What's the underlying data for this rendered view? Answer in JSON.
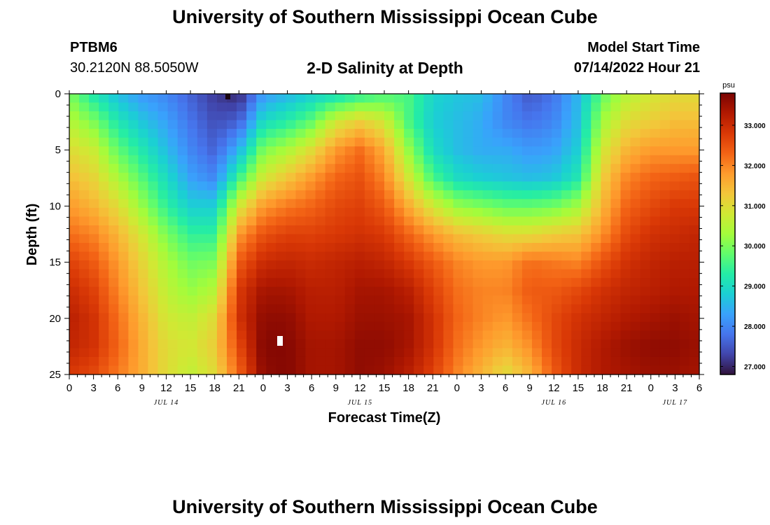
{
  "header": {
    "title": "University of Southern Mississippi Ocean Cube",
    "station_id": "PTBM6",
    "location": "30.2120N  88.5050W",
    "plot_title": "2-D Salinity at Depth",
    "model_start_label": "Model Start Time",
    "model_start_value": "07/14/2022 Hour 21"
  },
  "footer": {
    "title": "University of Southern Mississippi Ocean Cube"
  },
  "chart_data": {
    "type": "heatmap",
    "title": "2-D Salinity at Depth",
    "xlabel": "Forecast Time(Z)",
    "ylabel": "Depth (ft)",
    "ylim": [
      0,
      25
    ],
    "y_ticks": [
      "0",
      "5",
      "10",
      "15",
      "20",
      "25"
    ],
    "x_range_hours": [
      0,
      78
    ],
    "x_tick_labels": [
      "0",
      "3",
      "6",
      "9",
      "12",
      "15",
      "18",
      "21",
      "0",
      "3",
      "6",
      "9",
      "12",
      "15",
      "18",
      "21",
      "0",
      "3",
      "6",
      "9",
      "12",
      "15",
      "18",
      "21",
      "0",
      "3",
      "6"
    ],
    "date_labels": [
      {
        "text": "JUL 14",
        "hour": 12
      },
      {
        "text": "JUL 15",
        "hour": 36
      },
      {
        "text": "JUL 16",
        "hour": 60
      },
      {
        "text": "JUL 17",
        "hour": 75
      }
    ],
    "colorbar": {
      "unit": "psu",
      "min": 26.8,
      "max": 33.8,
      "ticks": [
        "27.000",
        "28.000",
        "29.000",
        "30.000",
        "31.000",
        "32.000",
        "33.000"
      ],
      "colors": [
        "#30123b",
        "#4145ab",
        "#4675ed",
        "#39a2fc",
        "#1bcfd4",
        "#24eca6",
        "#61fc6c",
        "#a4fc3b",
        "#d1e834",
        "#f3c63a",
        "#fe9b2d",
        "#f36315",
        "#d93806",
        "#b11901",
        "#7a0402"
      ]
    },
    "depth_rows_ft": [
      0,
      2.5,
      5,
      7.5,
      10,
      12.5,
      15,
      17.5,
      20,
      22.5,
      25
    ],
    "time_columns_hours": [
      0,
      3,
      6,
      9,
      12,
      15,
      18,
      21,
      24,
      27,
      30,
      33,
      36,
      39,
      42,
      45,
      48,
      51,
      54,
      57,
      60,
      63,
      66,
      69,
      72,
      75,
      78
    ],
    "salinity_psu": [
      [
        30.0,
        29.2,
        28.6,
        28.2,
        28.0,
        27.6,
        27.2,
        27.0,
        28.2,
        28.5,
        28.8,
        29.0,
        29.3,
        29.6,
        29.6,
        28.9,
        28.7,
        28.6,
        28.0,
        27.5,
        27.8,
        28.5,
        29.8,
        30.5,
        30.8,
        31.0,
        31.0
      ],
      [
        30.5,
        30.0,
        29.2,
        28.7,
        28.3,
        27.8,
        27.4,
        27.6,
        29.0,
        29.3,
        29.8,
        30.8,
        31.2,
        30.8,
        29.6,
        28.8,
        28.6,
        28.4,
        28.0,
        27.8,
        28.0,
        28.6,
        30.3,
        31.0,
        31.2,
        31.4,
        31.4
      ],
      [
        31.0,
        30.7,
        29.8,
        29.2,
        28.6,
        28.0,
        27.6,
        28.5,
        30.0,
        30.4,
        31.0,
        31.8,
        32.2,
        31.6,
        30.2,
        29.0,
        28.6,
        28.4,
        28.4,
        28.2,
        28.3,
        28.8,
        30.8,
        31.5,
        31.8,
        31.8,
        31.8
      ],
      [
        31.4,
        31.1,
        30.4,
        29.7,
        29.0,
        28.3,
        28.0,
        29.5,
        30.8,
        31.3,
        31.8,
        32.3,
        32.5,
        32.0,
        30.8,
        29.6,
        29.0,
        28.8,
        28.7,
        28.6,
        28.7,
        29.2,
        31.2,
        32.0,
        32.3,
        32.4,
        32.5
      ],
      [
        31.8,
        31.5,
        31.0,
        30.2,
        29.4,
        28.8,
        28.8,
        30.8,
        31.8,
        32.1,
        32.3,
        32.6,
        32.7,
        32.4,
        31.6,
        30.8,
        30.2,
        30.0,
        29.8,
        29.8,
        29.9,
        30.3,
        31.5,
        32.3,
        32.6,
        32.8,
        32.8
      ],
      [
        32.2,
        32.0,
        31.5,
        30.8,
        30.0,
        29.4,
        29.4,
        31.8,
        32.5,
        32.7,
        32.7,
        32.8,
        32.9,
        32.8,
        32.3,
        31.8,
        31.4,
        31.2,
        31.0,
        31.0,
        31.2,
        31.3,
        31.9,
        32.6,
        32.9,
        33.0,
        33.1
      ],
      [
        32.7,
        32.4,
        31.8,
        31.1,
        30.4,
        29.9,
        30.0,
        32.4,
        33.0,
        33.1,
        33.0,
        33.1,
        33.2,
        33.1,
        32.8,
        32.4,
        32.0,
        31.8,
        31.8,
        32.2,
        32.1,
        32.0,
        32.5,
        32.9,
        33.1,
        33.2,
        33.2
      ],
      [
        33.0,
        32.7,
        32.0,
        31.3,
        30.6,
        30.2,
        30.5,
        32.8,
        33.4,
        33.4,
        33.2,
        33.2,
        33.4,
        33.4,
        33.2,
        32.7,
        32.2,
        32.0,
        32.0,
        32.4,
        32.4,
        32.6,
        32.9,
        33.1,
        33.2,
        33.3,
        33.3
      ],
      [
        33.2,
        32.9,
        32.2,
        31.5,
        30.8,
        30.6,
        31.0,
        32.9,
        33.6,
        33.6,
        33.3,
        33.3,
        33.5,
        33.5,
        33.4,
        32.9,
        32.3,
        32.0,
        31.8,
        32.2,
        32.6,
        32.9,
        33.1,
        33.3,
        33.4,
        33.5,
        33.4
      ],
      [
        33.1,
        32.9,
        32.3,
        31.6,
        31.0,
        30.8,
        31.2,
        32.6,
        33.7,
        33.7,
        33.4,
        33.4,
        33.6,
        33.6,
        33.4,
        32.9,
        32.2,
        31.8,
        31.5,
        31.9,
        32.6,
        33.0,
        33.3,
        33.5,
        33.6,
        33.6,
        33.5
      ],
      [
        32.8,
        32.6,
        32.1,
        31.6,
        31.0,
        30.6,
        31.0,
        32.3,
        33.6,
        33.7,
        33.4,
        33.4,
        33.6,
        33.5,
        33.2,
        32.7,
        32.0,
        31.5,
        31.0,
        31.5,
        32.4,
        33.0,
        33.3,
        33.4,
        33.5,
        33.5,
        33.4
      ]
    ]
  }
}
